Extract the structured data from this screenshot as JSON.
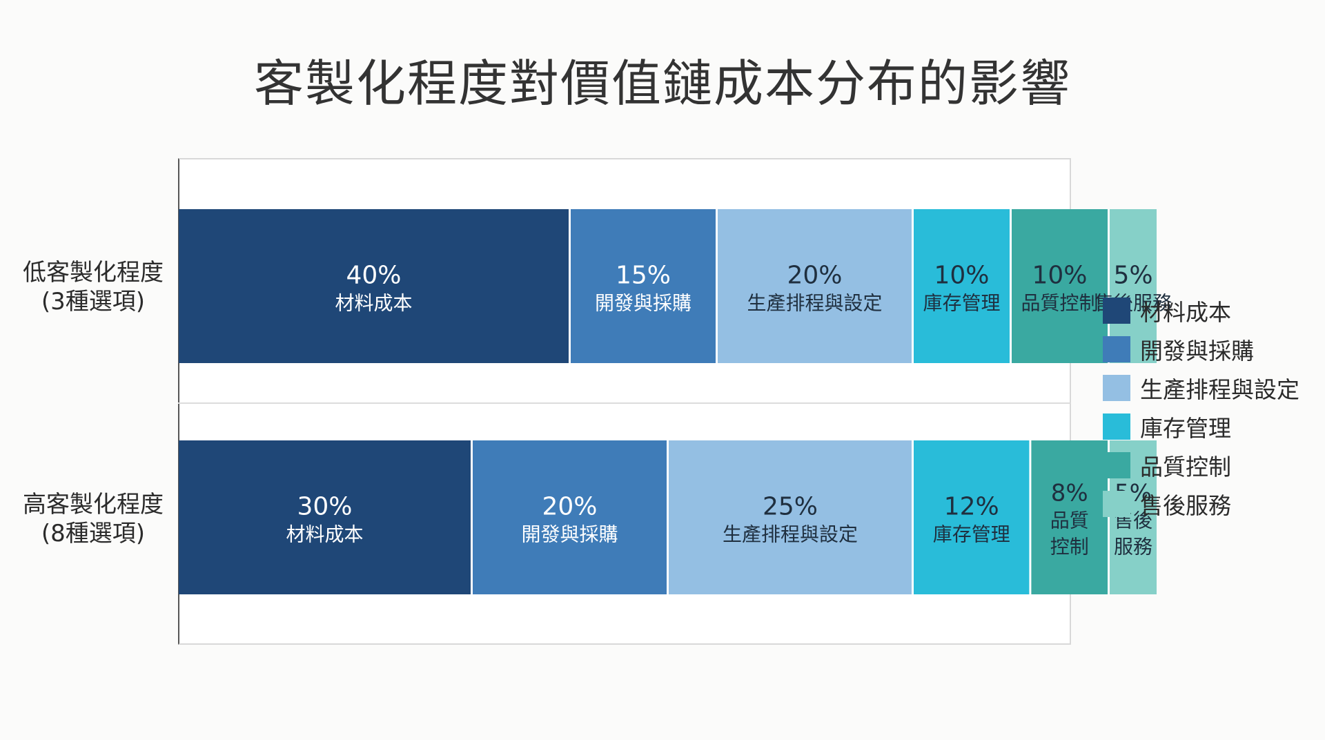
{
  "chart_data": {
    "type": "bar",
    "orientation": "horizontal",
    "stacked": true,
    "title": "客製化程度對價值鏈成本分布的影響",
    "categories": [
      {
        "line1": "低客製化程度",
        "line2": "(3種選項)"
      },
      {
        "line1": "高客製化程度",
        "line2": "(8種選項)"
      }
    ],
    "series": [
      {
        "name": "材料成本",
        "color": "#1f4777",
        "values": [
          40,
          30
        ],
        "bar_labels": [
          [
            "材料成本"
          ],
          [
            "材料成本"
          ]
        ]
      },
      {
        "name": "開發與採購",
        "color": "#3f7cb8",
        "values": [
          15,
          20
        ],
        "bar_labels": [
          [
            "開發與採購"
          ],
          [
            "開發與採購"
          ]
        ]
      },
      {
        "name": "生產排程與設定",
        "color": "#94bfe3",
        "values": [
          20,
          25
        ],
        "bar_labels": [
          [
            "生產排程與設定"
          ],
          [
            "生產排程與設定"
          ]
        ]
      },
      {
        "name": "庫存管理",
        "color": "#29bcd9",
        "values": [
          10,
          12
        ],
        "bar_labels": [
          [
            "庫存管理"
          ],
          [
            "庫存管理"
          ]
        ]
      },
      {
        "name": "品質控制",
        "color": "#3aa9a1",
        "values": [
          10,
          8
        ],
        "bar_labels": [
          [
            "品質控制"
          ],
          [
            "品質",
            "控制"
          ]
        ]
      },
      {
        "name": "售後服務",
        "color": "#86d0c8",
        "values": [
          5,
          5
        ],
        "bar_labels": [
          [
            "售後服務"
          ],
          [
            "售後",
            "服務"
          ]
        ]
      }
    ],
    "value_suffix": "%",
    "xlim": [
      0,
      100
    ],
    "grid": false,
    "legend_position": "right"
  }
}
